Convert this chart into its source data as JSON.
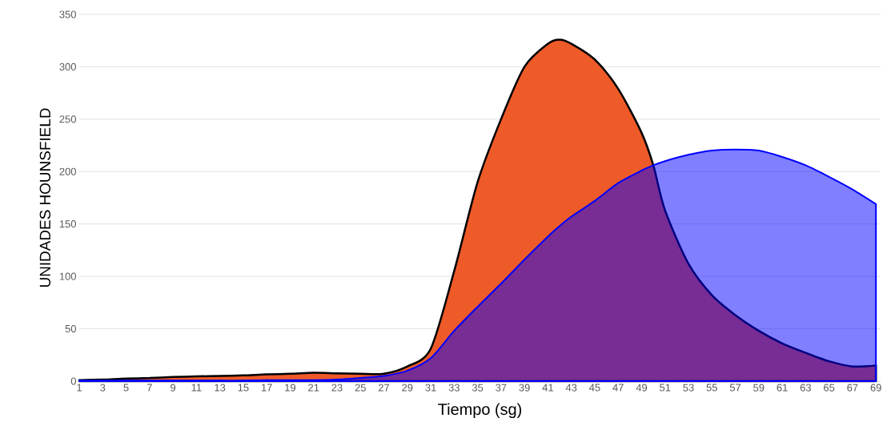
{
  "chart_data": {
    "type": "area",
    "xlabel": "Tiempo (sg)",
    "ylabel": "UNIDADES HOUNSFIELD",
    "grid": "y",
    "x": [
      1,
      3,
      5,
      7,
      9,
      11,
      13,
      15,
      17,
      19,
      21,
      23,
      25,
      27,
      29,
      31,
      33,
      35,
      37,
      39,
      41,
      42,
      43,
      45,
      47,
      49,
      50,
      51,
      53,
      55,
      57,
      59,
      61,
      63,
      65,
      67,
      69
    ],
    "series": [
      {
        "color": "#ee5a28",
        "values": [
          1,
          1.5,
          2.5,
          3,
          4,
          4.5,
          5,
          5.5,
          6.5,
          7,
          8,
          7.5,
          7,
          7,
          14,
          31,
          105,
          190,
          250,
          300,
          322,
          326,
          322,
          307,
          279,
          237,
          206,
          163,
          112,
          82,
          63,
          48,
          36,
          27,
          19,
          14,
          15
        ]
      },
      {
        "color": "#0000ff",
        "values": [
          0.5,
          0.5,
          0.5,
          0.5,
          0.5,
          0.5,
          0.5,
          0.5,
          1,
          1,
          1,
          1.5,
          3,
          5,
          10,
          22,
          48,
          71,
          93,
          116,
          138,
          148,
          157,
          172,
          189,
          201,
          206,
          210,
          216,
          220,
          221,
          220,
          214,
          206,
          195,
          183,
          169
        ]
      }
    ],
    "xlim": [
      1,
      69.4
    ],
    "ylim": [
      0,
      350
    ],
    "xticks": [
      1,
      {
        "value": 2,
        "label": null
      },
      3,
      {
        "value": 4,
        "label": null
      },
      5,
      {
        "value": 6,
        "label": null
      },
      7,
      {
        "value": 8,
        "label": null
      },
      9,
      {
        "value": 10,
        "label": null
      },
      11,
      {
        "value": 12,
        "label": null
      },
      13,
      {
        "value": 14,
        "label": null
      },
      15,
      {
        "value": 16,
        "label": null
      },
      17,
      {
        "value": 18,
        "label": null
      },
      19,
      {
        "value": 20,
        "label": null
      },
      21,
      {
        "value": 22,
        "label": null
      },
      23,
      {
        "value": 24,
        "label": null
      },
      25,
      {
        "value": 26,
        "label": null
      },
      27,
      {
        "value": 28,
        "label": null
      },
      29,
      {
        "value": 30,
        "label": null
      },
      31,
      {
        "value": 32,
        "label": null
      },
      33,
      {
        "value": 34,
        "label": null
      },
      35,
      {
        "value": 36,
        "label": null
      },
      37,
      {
        "value": 38,
        "label": null
      },
      39,
      {
        "value": 40,
        "label": null
      },
      41,
      {
        "value": 42,
        "label": null
      },
      43,
      {
        "value": 44,
        "label": null
      },
      45,
      {
        "value": 46,
        "label": null
      },
      47,
      {
        "value": 48,
        "label": null
      },
      49,
      {
        "value": 50,
        "label": null
      },
      51,
      {
        "value": 52,
        "label": null
      },
      53,
      {
        "value": 54,
        "label": null
      },
      55,
      {
        "value": 56,
        "label": null
      },
      57,
      {
        "value": 58,
        "label": null
      },
      59,
      {
        "value": 60,
        "label": null
      },
      61,
      {
        "value": 62,
        "label": null
      },
      63,
      {
        "value": 64,
        "label": null
      },
      65,
      {
        "value": 66,
        "label": null
      },
      67,
      {
        "value": 68,
        "label": null
      },
      69
    ],
    "yticks": [
      0,
      50,
      100,
      150,
      200,
      250,
      300,
      350
    ]
  }
}
